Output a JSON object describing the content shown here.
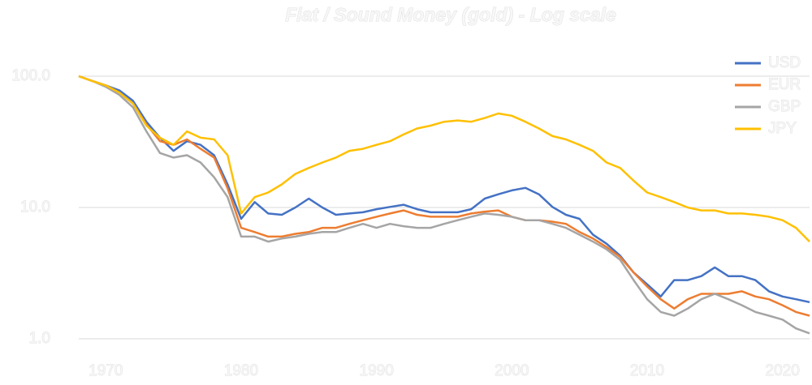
{
  "chart_data": {
    "type": "line",
    "title": "Fiat / Sound Money (gold) - Log scale",
    "log_scale": true,
    "grid": true,
    "legend": "top-right",
    "x": [
      1968,
      1969,
      1970,
      1971,
      1972,
      1973,
      1974,
      1975,
      1976,
      1977,
      1978,
      1979,
      1980,
      1981,
      1982,
      1983,
      1984,
      1985,
      1986,
      1987,
      1988,
      1989,
      1990,
      1991,
      1992,
      1993,
      1994,
      1995,
      1996,
      1997,
      1998,
      1999,
      2000,
      2001,
      2002,
      2003,
      2004,
      2005,
      2006,
      2007,
      2008,
      2009,
      2010,
      2011,
      2012,
      2013,
      2014,
      2015,
      2016,
      2017,
      2018,
      2019,
      2020,
      2021,
      2022
    ],
    "xlim": [
      1968,
      2022
    ],
    "xticks": [
      1970,
      1980,
      1990,
      2000,
      2010,
      2020
    ],
    "ylim": [
      1,
      100
    ],
    "yticks": [
      {
        "value": 1,
        "label": "1.0"
      },
      {
        "value": 10,
        "label": "10.0"
      },
      {
        "value": 100,
        "label": "100.0"
      }
    ],
    "series": [
      {
        "name": "USD",
        "color": "#4472c4",
        "values": [
          100,
          92,
          85,
          78,
          65,
          45,
          34,
          27,
          32,
          30,
          25,
          15,
          8.2,
          11,
          9,
          8.8,
          10,
          11.7,
          10,
          8.8,
          9,
          9.2,
          9.7,
          10.1,
          10.5,
          9.7,
          9.2,
          9.2,
          9.2,
          9.7,
          11.7,
          12.6,
          13.5,
          14.1,
          12.6,
          10.1,
          8.8,
          8.2,
          6.2,
          5.3,
          4.3,
          3.2,
          2.6,
          2.1,
          2.8,
          2.8,
          3.0,
          3.5,
          3.0,
          3.0,
          2.8,
          2.3,
          2.1,
          2.0,
          1.9
        ]
      },
      {
        "name": "EUR",
        "color": "#ed7d31",
        "values": [
          100,
          92,
          85,
          75,
          62,
          43,
          32,
          30,
          33,
          28,
          24,
          14,
          7,
          6.5,
          6,
          6,
          6.3,
          6.5,
          7,
          7,
          7.5,
          8,
          8.5,
          9,
          9.5,
          8.8,
          8.5,
          8.5,
          8.5,
          9,
          9.3,
          9.5,
          8.5,
          8,
          8,
          7.8,
          7.5,
          6.5,
          5.8,
          5,
          4.2,
          3.2,
          2.5,
          2,
          1.7,
          2,
          2.2,
          2.2,
          2.2,
          2.3,
          2.1,
          2,
          1.8,
          1.6,
          1.5
        ]
      },
      {
        "name": "GBP",
        "color": "#a5a5a5",
        "values": [
          100,
          92,
          83,
          72,
          58,
          38,
          26,
          24,
          25,
          22,
          17,
          12,
          6,
          6,
          5.5,
          5.8,
          6,
          6.3,
          6.5,
          6.5,
          7,
          7.5,
          7,
          7.5,
          7.2,
          7,
          7,
          7.5,
          8,
          8.5,
          9,
          8.8,
          8.5,
          8,
          8,
          7.5,
          7,
          6.2,
          5.5,
          4.8,
          4,
          2.8,
          2,
          1.6,
          1.5,
          1.7,
          2,
          2.2,
          2,
          1.8,
          1.6,
          1.5,
          1.4,
          1.2,
          1.1
        ]
      },
      {
        "name": "JPY",
        "color": "#ffc000",
        "values": [
          100,
          92,
          85,
          75,
          62,
          42,
          34,
          30,
          38,
          34,
          33,
          25,
          9,
          12,
          13,
          15,
          18,
          20,
          22,
          24,
          27,
          28,
          30,
          32,
          36,
          40,
          42,
          45,
          46,
          45,
          48,
          52,
          50,
          45,
          40,
          35,
          33,
          30,
          27,
          22,
          20,
          16,
          13,
          12,
          11,
          10,
          9.5,
          9.5,
          9,
          9,
          8.8,
          8.5,
          8,
          7,
          5.5
        ]
      }
    ]
  }
}
